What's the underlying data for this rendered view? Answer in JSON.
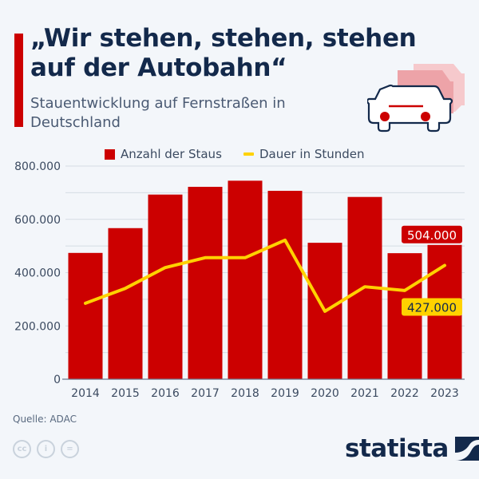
{
  "header": {
    "title": "„Wir stehen, stehen, stehen auf der Autobahn“",
    "subtitle": "Stauentwicklung auf Fernstraßen in Deutschland"
  },
  "legend": {
    "bars": "Anzahl der Staus",
    "line": "Dauer in Stunden"
  },
  "colors": {
    "bar": "#cc0000",
    "line": "#ffd200",
    "text": "#13294b",
    "background": "#f3f6fa"
  },
  "footer": {
    "source": "Quelle: ADAC",
    "brand": "statista",
    "license_icons": [
      "cc-icon",
      "attribution-icon",
      "no-derivatives-icon"
    ]
  },
  "chart_data": {
    "type": "bar",
    "title": "„Wir stehen, stehen, stehen auf der Autobahn“",
    "subtitle": "Stauentwicklung auf Fernstraßen in Deutschland",
    "xlabel": "",
    "ylabel": "",
    "categories": [
      "2014",
      "2015",
      "2016",
      "2017",
      "2018",
      "2019",
      "2020",
      "2021",
      "2022",
      "2023"
    ],
    "series": [
      {
        "name": "Anzahl der Staus",
        "type": "bar",
        "values": [
          474000,
          567000,
          693000,
          722000,
          745000,
          707000,
          512000,
          684000,
          473000,
          504000
        ]
      },
      {
        "name": "Dauer in Stunden",
        "type": "line",
        "values": [
          285000,
          341000,
          419000,
          456000,
          456000,
          522000,
          255000,
          347000,
          333000,
          427000
        ]
      }
    ],
    "ylim": [
      0,
      800000
    ],
    "yticks": [
      0,
      200000,
      400000,
      600000,
      800000
    ],
    "ytick_labels": [
      "0",
      "200.000",
      "400.000",
      "600.000",
      "800.000"
    ],
    "minor_gridlines_every": 100000,
    "grid": true,
    "legend_position": "top",
    "annotations": [
      {
        "series": "Anzahl der Staus",
        "category": "2023",
        "label": "504.000"
      },
      {
        "series": "Dauer in Stunden",
        "category": "2023",
        "label": "427.000"
      }
    ]
  }
}
